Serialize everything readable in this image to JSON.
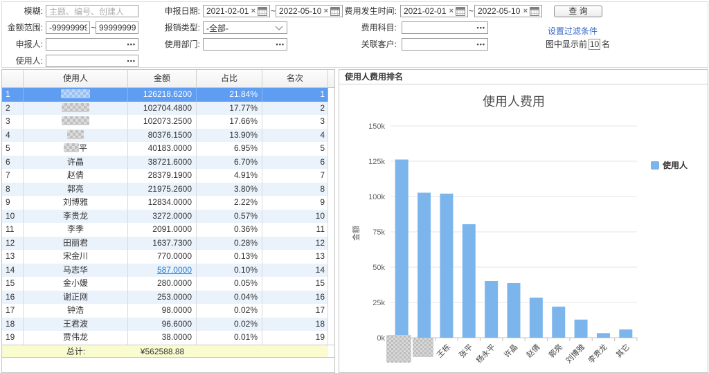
{
  "filter": {
    "fuzzy_label": "模糊:",
    "fuzzy_placeholder": "主题、编号、创建人",
    "amount_range_label": "金额范围:",
    "amount_min": "-99999999",
    "amount_max": "999999999",
    "tilde": "~",
    "declarer_label": "申报人:",
    "user_label": "使用人:",
    "declare_date_label": "申报日期:",
    "declare_date_from": "2021-02-01",
    "declare_date_to": "2022-05-10",
    "expense_type_label": "报销类型:",
    "expense_type_value": "-全部-",
    "use_dept_label": "使用部门:",
    "expense_time_label": "费用发生时间:",
    "expense_date_from": "2021-02-01",
    "expense_date_to": "2022-05-10",
    "expense_subject_label": "费用科目:",
    "related_customer_label": "关联客户:",
    "search_button": "查 询",
    "set_filter_link": "设置过滤条件",
    "top_n_prefix": "图中显示前",
    "top_n_value": "10",
    "top_n_suffix": "名",
    "clear_x": "×",
    "picker_dots": "•••"
  },
  "table": {
    "headers": [
      "使用人",
      "金额",
      "占比",
      "名次"
    ],
    "rows": [
      {
        "no": "1",
        "name": "",
        "redacted": true,
        "mosaic_w": 42,
        "amount": "126218.6200",
        "pct": "21.84%",
        "rank": "1",
        "selected": true
      },
      {
        "no": "2",
        "name": "",
        "redacted": true,
        "mosaic_w": 40,
        "amount": "102704.4800",
        "pct": "17.77%",
        "rank": "2"
      },
      {
        "no": "3",
        "name": "",
        "redacted": true,
        "mosaic_w": 40,
        "amount": "102073.2500",
        "pct": "17.66%",
        "rank": "3"
      },
      {
        "no": "4",
        "name": "",
        "redacted": true,
        "mosaic_w": 24,
        "amount": "80376.1500",
        "pct": "13.90%",
        "rank": "4"
      },
      {
        "no": "5",
        "name": "平",
        "redacted": true,
        "mosaic_w": 22,
        "amount": "40183.0000",
        "pct": "6.95%",
        "rank": "5"
      },
      {
        "no": "6",
        "name": "许晶",
        "amount": "38721.6000",
        "pct": "6.70%",
        "rank": "6"
      },
      {
        "no": "7",
        "name": "赵倩",
        "amount": "28379.1900",
        "pct": "4.91%",
        "rank": "7"
      },
      {
        "no": "8",
        "name": "郭亮",
        "amount": "21975.2600",
        "pct": "3.80%",
        "rank": "8"
      },
      {
        "no": "9",
        "name": "刘博雅",
        "amount": "12834.0000",
        "pct": "2.22%",
        "rank": "9"
      },
      {
        "no": "10",
        "name": "李贵龙",
        "amount": "3272.0000",
        "pct": "0.57%",
        "rank": "10"
      },
      {
        "no": "11",
        "name": "李季",
        "amount": "2091.0000",
        "pct": "0.36%",
        "rank": "11"
      },
      {
        "no": "12",
        "name": "田丽君",
        "amount": "1637.7300",
        "pct": "0.28%",
        "rank": "12"
      },
      {
        "no": "13",
        "name": "宋金川",
        "amount": "770.0000",
        "pct": "0.13%",
        "rank": "13"
      },
      {
        "no": "14",
        "name": "马志华",
        "amount": "587.0000",
        "pct": "0.10%",
        "rank": "14",
        "link": true
      },
      {
        "no": "15",
        "name": "金小媛",
        "amount": "280.0000",
        "pct": "0.05%",
        "rank": "15"
      },
      {
        "no": "16",
        "name": "谢正刚",
        "amount": "253.0000",
        "pct": "0.04%",
        "rank": "16"
      },
      {
        "no": "17",
        "name": "钟浩",
        "amount": "98.0000",
        "pct": "0.02%",
        "rank": "17"
      },
      {
        "no": "18",
        "name": "王君波",
        "amount": "96.6000",
        "pct": "0.02%",
        "rank": "18"
      },
      {
        "no": "19",
        "name": "贾伟龙",
        "amount": "38.0000",
        "pct": "0.01%",
        "rank": "19"
      }
    ],
    "total_label": "总计:",
    "total_amount": "¥562588.88"
  },
  "chart_panel": {
    "header": "使用人费用排名"
  },
  "chart_data": {
    "type": "bar",
    "title": "使用人费用",
    "ylabel": "金额",
    "legend": [
      "使用人"
    ],
    "legend_position": "right",
    "ylim": [
      0,
      150000
    ],
    "ytick_step": 25000,
    "ytick_labels": [
      "0k",
      "25k",
      "50k",
      "75k",
      "100k",
      "125k",
      "150k"
    ],
    "categories": [
      "",
      "",
      "王栋",
      "张平",
      "杨永平",
      "许晶",
      "赵倩",
      "郭亮",
      "刘博雅",
      "李贵龙",
      "其它"
    ],
    "redacted_indices": [
      0,
      1
    ],
    "values": [
      126218.62,
      102704.48,
      102073.25,
      80376.15,
      40183,
      38721.6,
      28379.19,
      21975.26,
      12834,
      3272,
      5851.33
    ],
    "bar_color": "#7cb5ec",
    "grid": true
  },
  "colors": {
    "selected_row": "#5f9df2",
    "row_alt": "#eaf2fb",
    "total_bg": "#fbfbd0",
    "link_blue": "#2a7fd8",
    "bar_blue": "#7cb5ec"
  }
}
